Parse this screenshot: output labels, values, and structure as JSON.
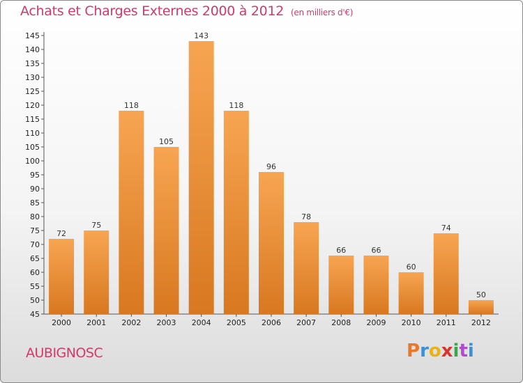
{
  "title": "Achats et Charges Externes 2000 à 2012",
  "subtitle": "(en milliers d'€)",
  "commune": "AUBIGNOSC",
  "brand": {
    "text": "Proxiti",
    "colors": [
      "#e8782a",
      "#3a8fd8",
      "#e8b21a",
      "#d8342c",
      "#3aa84a",
      "#b24ad0",
      "#3a8fd8"
    ]
  },
  "colors": {
    "title": "#d23a6a",
    "bar_top": "#f7a552",
    "bar_bottom": "#d87820"
  },
  "chart_data": {
    "type": "bar",
    "title": "Achats et Charges Externes 2000 à 2012",
    "subtitle": "(en milliers d'€)",
    "categories": [
      "2000",
      "2001",
      "2002",
      "2003",
      "2004",
      "2005",
      "2006",
      "2007",
      "2008",
      "2009",
      "2010",
      "2011",
      "2012"
    ],
    "values": [
      72,
      75,
      118,
      105,
      143,
      118,
      96,
      78,
      66,
      66,
      60,
      74,
      50
    ],
    "ylim": [
      45,
      145
    ],
    "yticks": [
      45,
      50,
      55,
      60,
      65,
      70,
      75,
      80,
      85,
      90,
      95,
      100,
      105,
      110,
      115,
      120,
      125,
      130,
      135,
      140,
      145
    ],
    "grid": false,
    "legend": "none",
    "xlabel": "",
    "ylabel": ""
  }
}
